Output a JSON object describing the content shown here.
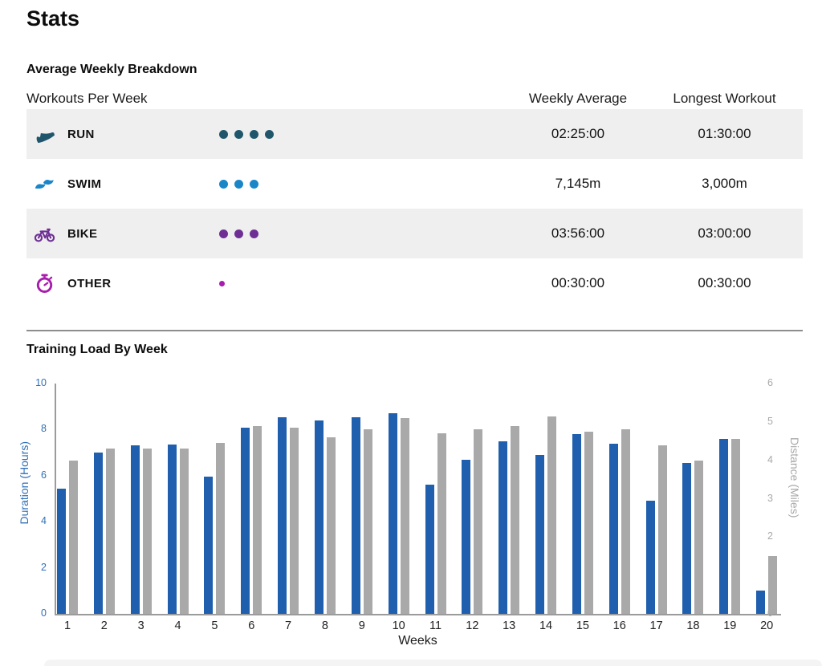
{
  "page": {
    "title": "Stats"
  },
  "breakdown": {
    "section_title": "Average Weekly Breakdown",
    "columns": {
      "workouts": "Workouts Per Week",
      "weekly_average": "Weekly Average",
      "longest_workout": "Longest Workout"
    },
    "rows": [
      {
        "sport": "RUN",
        "icon": "run-shoe-icon",
        "color": "#20566b",
        "dots": 4,
        "dot_small": false,
        "weekly_average": "02:25:00",
        "longest_workout": "01:30:00"
      },
      {
        "sport": "SWIM",
        "icon": "swim-wave-icon",
        "color": "#1a86c8",
        "dots": 3,
        "dot_small": false,
        "weekly_average": "7,145m",
        "longest_workout": "3,000m"
      },
      {
        "sport": "BIKE",
        "icon": "bicycle-icon",
        "color": "#6e2f94",
        "dots": 3,
        "dot_small": false,
        "weekly_average": "03:56:00",
        "longest_workout": "03:00:00"
      },
      {
        "sport": "OTHER",
        "icon": "stopwatch-icon",
        "color": "#a81cae",
        "dots": 1,
        "dot_small": true,
        "weekly_average": "00:30:00",
        "longest_workout": "00:30:00"
      }
    ]
  },
  "chart_data": {
    "type": "bar",
    "title": "Training Load By Week",
    "xlabel": "Weeks",
    "ylabel_left": "Duration (Hours)",
    "ylabel_right": "Distance (Miles)",
    "ylim_left": [
      0,
      10
    ],
    "ylim_right": [
      0,
      6
    ],
    "yticks_left": [
      0,
      2,
      4,
      6,
      8,
      10
    ],
    "yticks_right": [
      0,
      1,
      2,
      3,
      4,
      5,
      6
    ],
    "grid": false,
    "legend_position": "none",
    "categories": [
      "1",
      "2",
      "3",
      "4",
      "5",
      "6",
      "7",
      "8",
      "9",
      "10",
      "11",
      "12",
      "13",
      "14",
      "15",
      "16",
      "17",
      "18",
      "19",
      "20"
    ],
    "series": [
      {
        "name": "Duration (Hours)",
        "axis": "left",
        "color": "#1f5fae",
        "values": [
          5.45,
          7.0,
          7.3,
          7.35,
          5.95,
          8.1,
          8.55,
          8.4,
          8.55,
          8.7,
          5.6,
          6.7,
          7.5,
          6.9,
          7.8,
          7.4,
          4.9,
          6.55,
          7.6,
          1.0
        ]
      },
      {
        "name": "Distance (Miles)",
        "axis": "right",
        "color": "#a9a9a9",
        "values": [
          4.0,
          4.3,
          4.3,
          4.3,
          4.45,
          4.9,
          4.85,
          4.6,
          4.8,
          5.1,
          4.7,
          4.8,
          4.9,
          5.15,
          4.75,
          4.8,
          4.4,
          4.0,
          4.55,
          1.5
        ]
      }
    ]
  }
}
